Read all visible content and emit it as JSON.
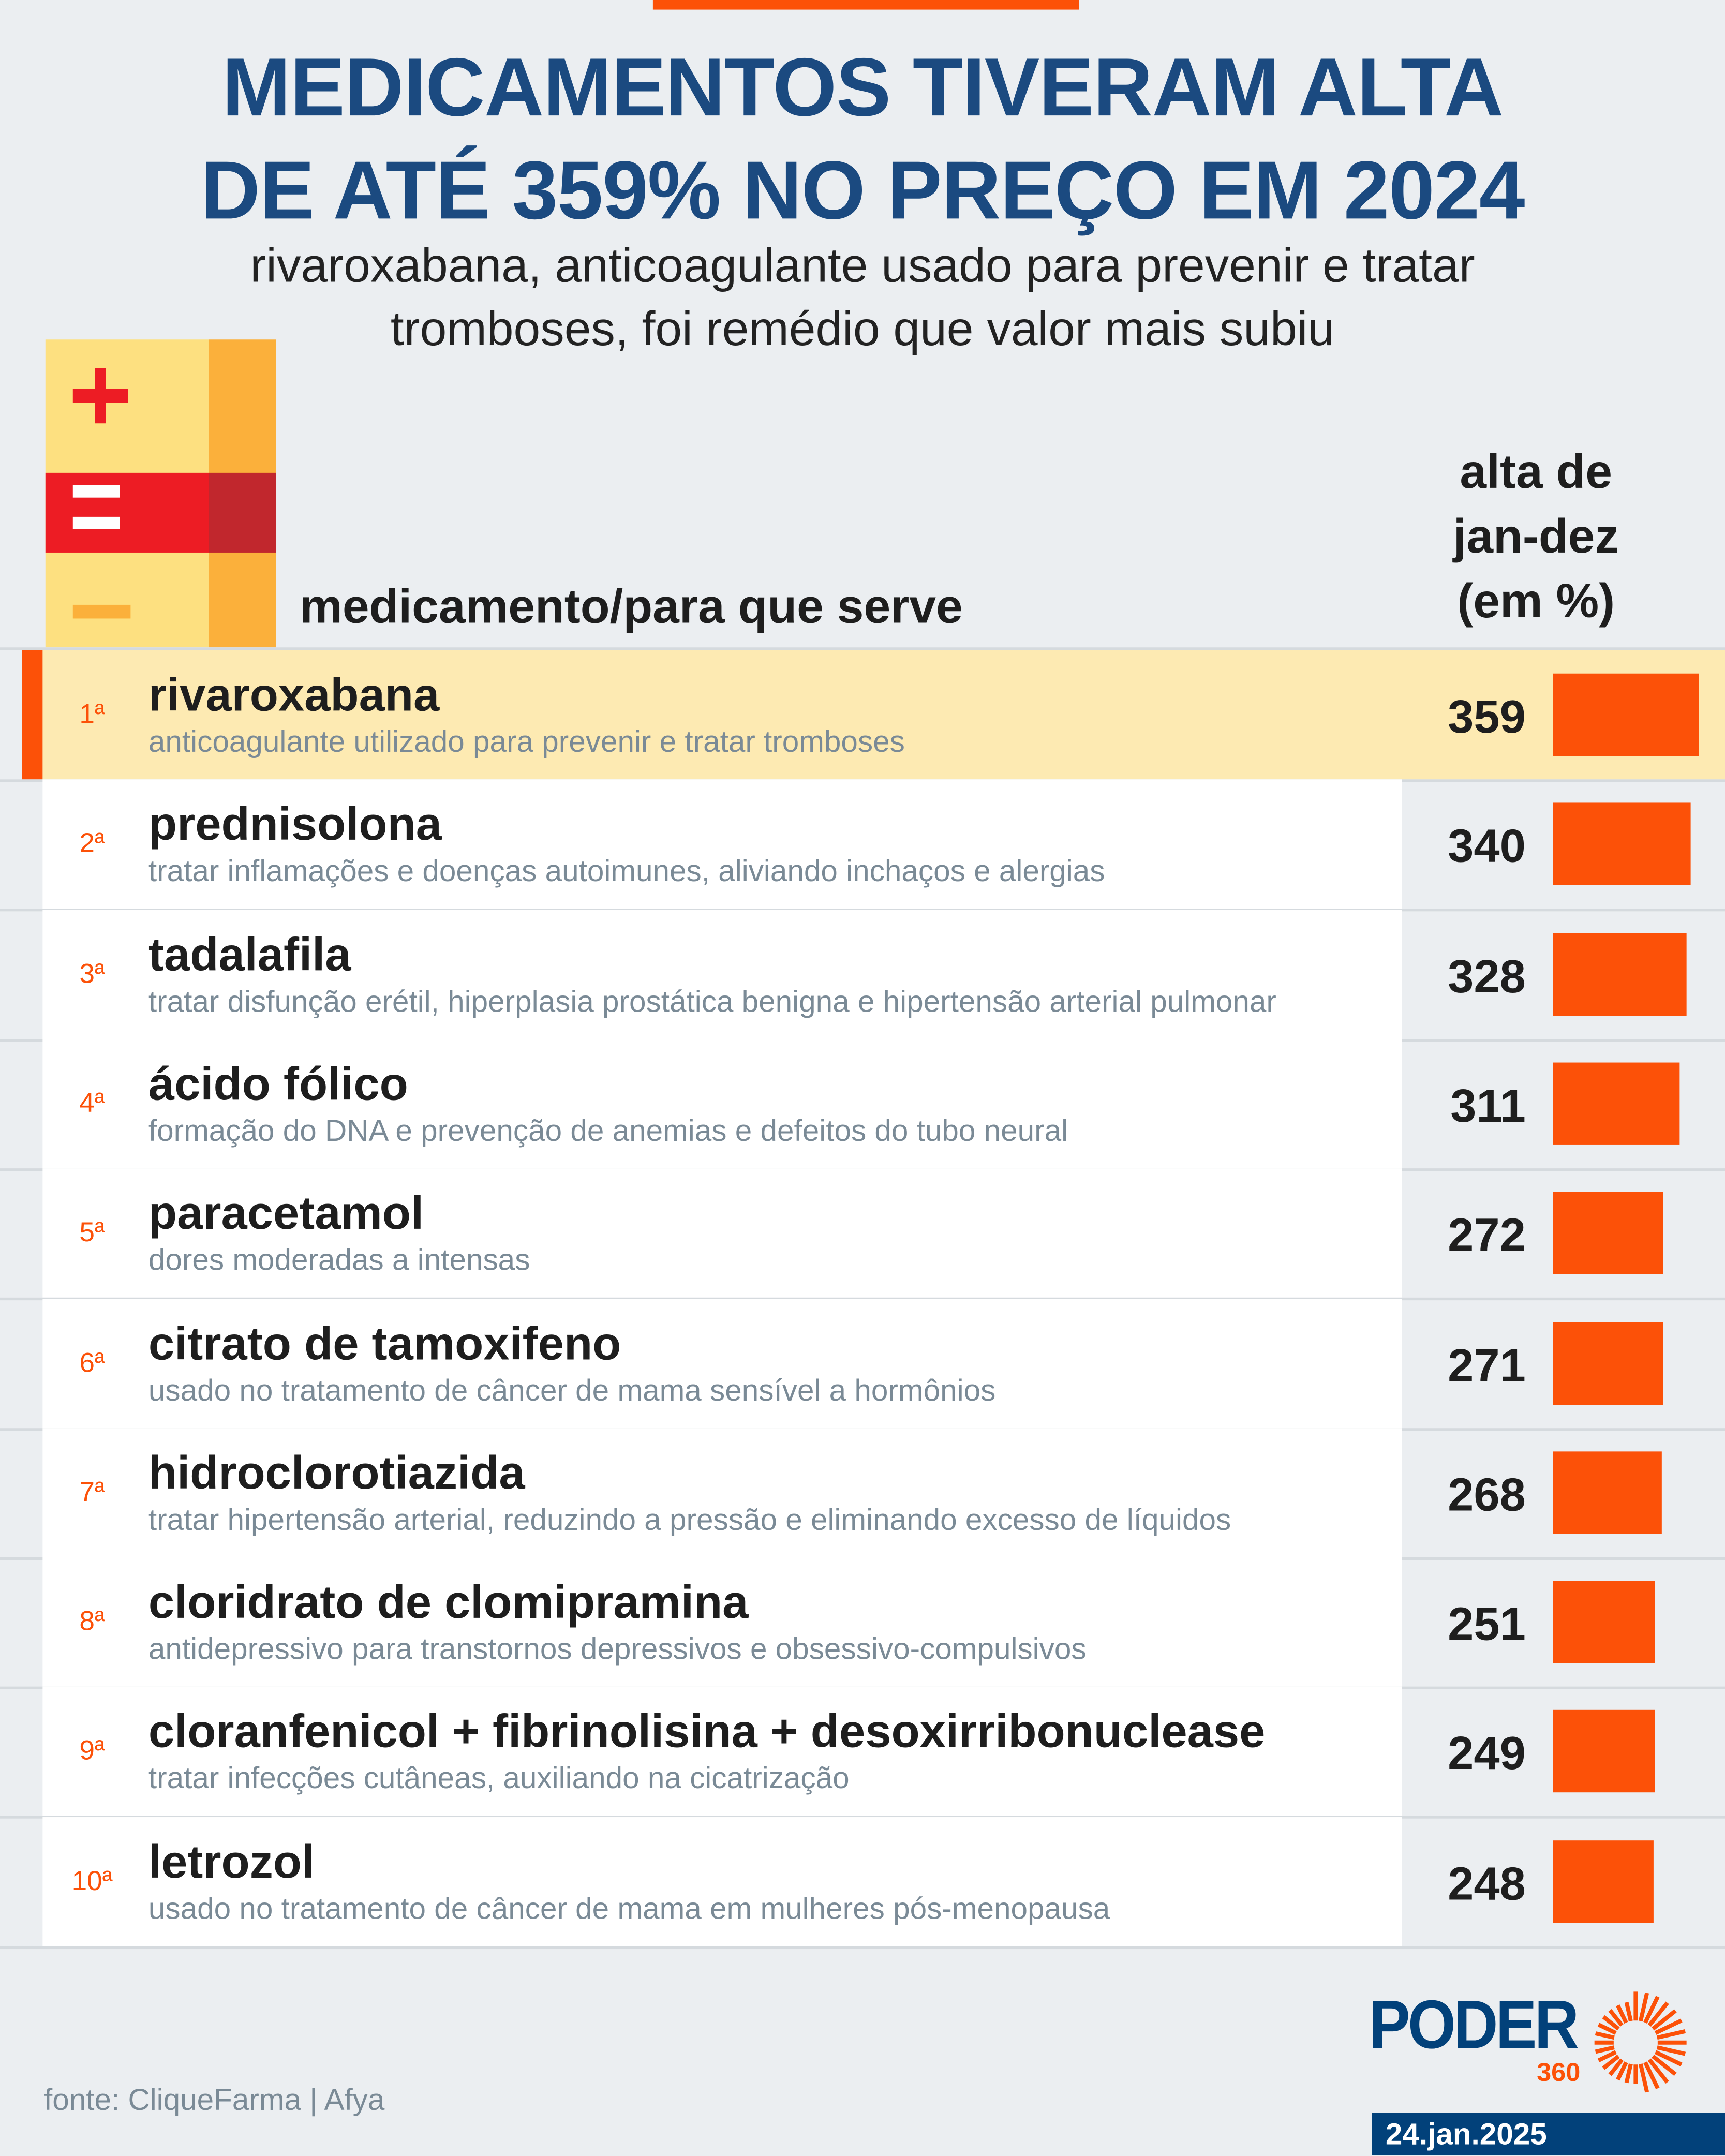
{
  "header": {
    "title_line1": "MEDICAMENTOS TIVERAM ALTA",
    "title_line2": "DE ATÉ 359% NO PREÇO EM 2024",
    "subtitle_line1": "rivaroxabana, anticoagulante usado para prevenir e tratar",
    "subtitle_line2": "tromboses, foi remédio que valor mais subiu"
  },
  "colors": {
    "accent": "#fc5108",
    "brand": "#02417a",
    "title": "#1b4a80",
    "highlight": "#fdeab2"
  },
  "chart_data": {
    "type": "bar",
    "orientation": "horizontal",
    "title": "MEDICAMENTOS TIVERAM ALTA DE ATÉ 359% NO PREÇO EM 2024",
    "column_label": "medicamento/para que serve",
    "value_label": [
      "alta de",
      "jan-dez",
      "(em %)"
    ],
    "xlim": [
      0,
      359
    ],
    "rows": [
      {
        "rank": "1ª",
        "name": "rivaroxabana",
        "desc": "anticoagulante utilizado para prevenir e tratar tromboses",
        "value": 359
      },
      {
        "rank": "2ª",
        "name": "prednisolona",
        "desc": "tratar inflamações e doenças autoimunes, aliviando inchaços e alergias",
        "value": 340
      },
      {
        "rank": "3ª",
        "name": "tadalafila",
        "desc": "tratar disfunção erétil, hiperplasia prostática benigna e hipertensão arterial pulmonar",
        "value": 328
      },
      {
        "rank": "4ª",
        "name": "ácido fólico",
        "desc": "formação do DNA e prevenção de anemias e defeitos do tubo neural",
        "value": 311
      },
      {
        "rank": "5ª",
        "name": "paracetamol",
        "desc": "dores moderadas a intensas",
        "value": 272
      },
      {
        "rank": "6ª",
        "name": "citrato de tamoxifeno",
        "desc": "usado no tratamento de câncer de mama sensível a hormônios",
        "value": 271
      },
      {
        "rank": "7ª",
        "name": "hidroclorotiazida",
        "desc": "tratar hipertensão arterial, reduzindo a pressão e eliminando excesso de líquidos",
        "value": 268
      },
      {
        "rank": "8ª",
        "name": "cloridrato de clomipramina",
        "desc": "antidepressivo para transtornos depressivos e obsessivo-compulsivos",
        "value": 251
      },
      {
        "rank": "9ª",
        "name": "cloranfenicol + fibrinolisina + desoxirribonuclease",
        "desc": "tratar infecções cutâneas, auxiliando na cicatrização",
        "value": 249
      },
      {
        "rank": "10ª",
        "name": "letrozol",
        "desc": "usado no tratamento de câncer de mama em mulheres pós-menopausa",
        "value": 248
      }
    ]
  },
  "footer": {
    "source": "fonte: CliqueFarma | Afya",
    "logo_name": "PODER",
    "logo_number": "360",
    "date": "24.jan.2025"
  }
}
